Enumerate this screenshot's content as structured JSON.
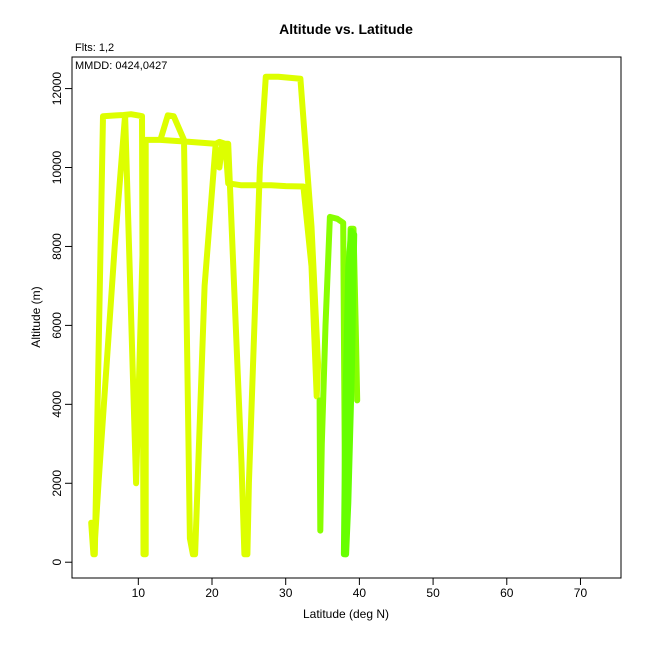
{
  "chart_data": {
    "type": "line",
    "title": "Altitude vs. Latitude",
    "annotations": {
      "flights": "Flts: 1,2",
      "dates": "MMDD: 0424,0427"
    },
    "xlabel": "Latitude (deg N)",
    "ylabel": "Altitude (m)",
    "xlim": [
      1,
      75.5
    ],
    "ylim": [
      -400,
      12800
    ],
    "xticks": [
      10,
      20,
      30,
      40,
      50,
      60,
      70
    ],
    "yticks": [
      0,
      2000,
      4000,
      6000,
      8000,
      10000,
      12000
    ],
    "grid": false,
    "series": [
      {
        "color": "#ddff00",
        "points": [
          [
            3.6,
            1000
          ],
          [
            3.9,
            200
          ],
          [
            4.1,
            200
          ],
          [
            5.2,
            11300
          ],
          [
            7.0,
            11320
          ],
          [
            8.0,
            11330
          ],
          [
            9.0,
            11350
          ],
          [
            10.0,
            11320
          ],
          [
            10.5,
            11300
          ],
          [
            10.7,
            200
          ],
          [
            11.0,
            200
          ],
          [
            11.0,
            10700
          ],
          [
            13.0,
            10700
          ],
          [
            14.0,
            11320
          ],
          [
            14.8,
            11300
          ],
          [
            16.2,
            10700
          ],
          [
            17.0,
            600
          ],
          [
            17.4,
            200
          ],
          [
            17.7,
            200
          ],
          [
            19.0,
            7000
          ],
          [
            20.5,
            10600
          ],
          [
            21.0,
            10650
          ],
          [
            21.8,
            10600
          ],
          [
            22.2,
            9600
          ],
          [
            24.0,
            9550
          ],
          [
            26.0,
            9550
          ],
          [
            28.0,
            9550
          ],
          [
            30.0,
            9530
          ],
          [
            32.4,
            9520
          ],
          [
            33.5,
            7500
          ],
          [
            34.2,
            4200
          ],
          [
            34.4,
            5000
          ],
          [
            33.5,
            8500
          ],
          [
            32.0,
            12250
          ],
          [
            29.0,
            12300
          ],
          [
            27.3,
            12300
          ],
          [
            26.5,
            10000
          ],
          [
            25.0,
            2000
          ],
          [
            24.8,
            200
          ],
          [
            24.4,
            200
          ],
          [
            24.0,
            2500
          ],
          [
            23.0,
            7000
          ],
          [
            22.2,
            10600
          ],
          [
            21.4,
            10600
          ],
          [
            21.0,
            10000
          ],
          [
            20.4,
            10600
          ],
          [
            17.0,
            10650
          ],
          [
            13.0,
            10700
          ],
          [
            11.0,
            10700
          ],
          [
            9.7,
            2000
          ],
          [
            8.2,
            11330
          ],
          [
            6.8,
            8000
          ],
          [
            4.6,
            2000
          ],
          [
            4.0,
            200
          ],
          [
            3.7,
            800
          ]
        ]
      },
      {
        "color": "#88ff00",
        "points": [
          [
            34.6,
            4100
          ],
          [
            34.7,
            800
          ],
          [
            34.9,
            3000
          ],
          [
            35.4,
            6000
          ],
          [
            36.0,
            8750
          ],
          [
            37.0,
            8700
          ],
          [
            37.8,
            8600
          ],
          [
            38.1,
            200
          ],
          [
            38.2,
            800
          ],
          [
            38.4,
            5000
          ],
          [
            38.8,
            8450
          ],
          [
            39.2,
            8450
          ],
          [
            39.5,
            6000
          ],
          [
            39.7,
            4100
          ]
        ]
      },
      {
        "color": "#66ff00",
        "points": [
          [
            37.9,
            200
          ],
          [
            38.1,
            4000
          ],
          [
            38.5,
            7500
          ],
          [
            38.9,
            8400
          ],
          [
            39.3,
            8300
          ],
          [
            39.0,
            5000
          ],
          [
            38.5,
            1500
          ],
          [
            38.2,
            200
          ]
        ]
      }
    ]
  }
}
